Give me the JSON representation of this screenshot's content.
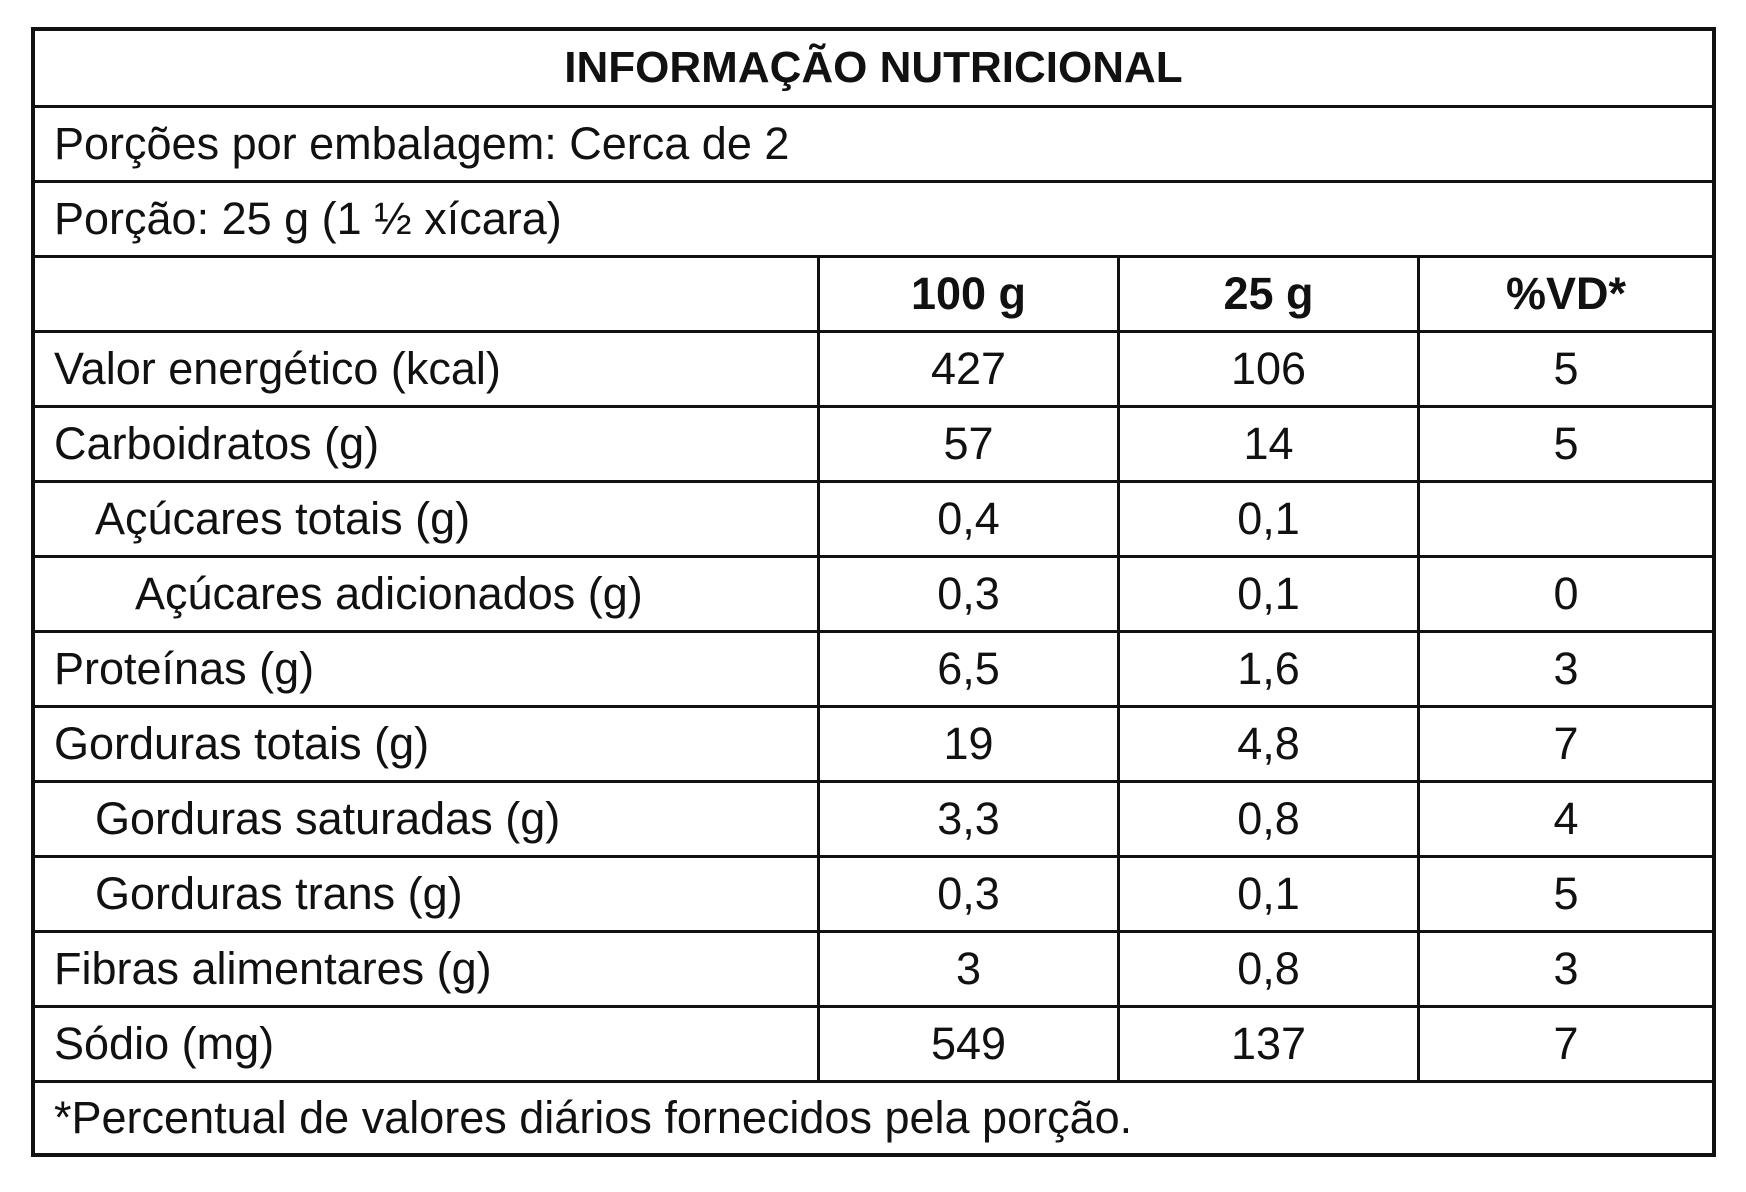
{
  "title": "INFORMAÇÃO NUTRICIONAL",
  "servings_per_package": "Porções por embalagem: Cerca de 2",
  "serving_size": "Porção: 25 g (1 ½ xícara)",
  "columns": [
    "100 g",
    "25 g",
    "%VD*"
  ],
  "rows": [
    {
      "name": "Valor energético (kcal)",
      "per100": "427",
      "perServing": "106",
      "vd": "5"
    },
    {
      "name": "Carboidratos (g)",
      "per100": "57",
      "perServing": "14",
      "vd": "5"
    },
    {
      "name": "Açúcares totais (g)",
      "per100": "0,4",
      "perServing": "0,1",
      "vd": ""
    },
    {
      "name": "Açúcares adicionados (g)",
      "per100": "0,3",
      "perServing": "0,1",
      "vd": "0"
    },
    {
      "name": "Proteínas (g)",
      "per100": "6,5",
      "perServing": "1,6",
      "vd": "3"
    },
    {
      "name": "Gorduras totais (g)",
      "per100": "19",
      "perServing": "4,8",
      "vd": "7"
    },
    {
      "name": "Gorduras saturadas (g)",
      "per100": "3,3",
      "perServing": "0,8",
      "vd": "4"
    },
    {
      "name": "Gorduras trans (g)",
      "per100": "0,3",
      "perServing": "0,1",
      "vd": "5"
    },
    {
      "name": "Fibras alimentares (g)",
      "per100": "3",
      "perServing": "0,8",
      "vd": "3"
    },
    {
      "name": "Sódio (mg)",
      "per100": "549",
      "perServing": "137",
      "vd": "7"
    }
  ],
  "footnote": "*Percentual de valores diários fornecidos pela porção."
}
